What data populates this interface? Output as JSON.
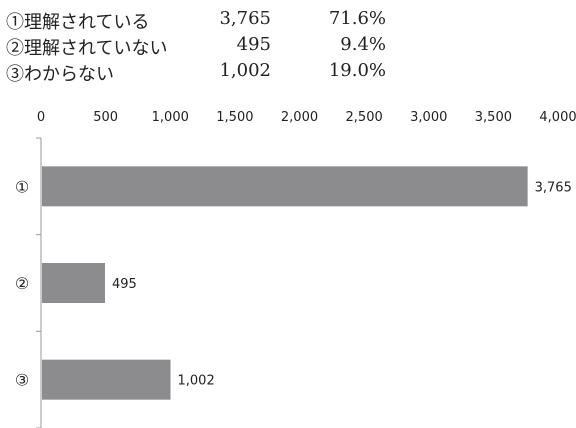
{
  "table": [
    {
      "label": "①理解されている",
      "count": "3,765",
      "percent": "71.6%"
    },
    {
      "label": "②理解されていない",
      "count": "495",
      "percent": "9.4%"
    },
    {
      "label": "③わからない",
      "count": "1,002",
      "percent": "19.0%"
    }
  ],
  "chart_data": {
    "type": "bar",
    "orientation": "horizontal",
    "categories": [
      "①",
      "②",
      "③"
    ],
    "values": [
      3765,
      495,
      1002
    ],
    "value_labels": [
      "3,765",
      "495",
      "1,002"
    ],
    "xlim": [
      0,
      4000
    ],
    "xticks": [
      0,
      500,
      1000,
      1500,
      2000,
      2500,
      3000,
      3500,
      4000
    ],
    "xtick_labels": [
      "0",
      "500",
      "1,000",
      "1,500",
      "2,000",
      "2,500",
      "3,000",
      "3,500",
      "4,000"
    ],
    "axis_position": "top",
    "grid": false,
    "bar_color": "#8c8c8e"
  }
}
